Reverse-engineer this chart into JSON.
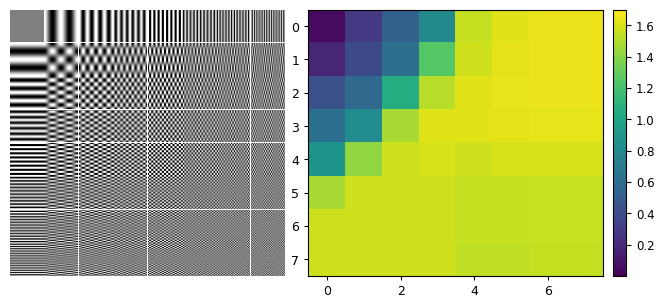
{
  "heatmap": [
    [
      0.05,
      0.28,
      0.52,
      0.8,
      1.55,
      1.62,
      1.65,
      1.65
    ],
    [
      0.18,
      0.38,
      0.62,
      1.25,
      1.58,
      1.63,
      1.65,
      1.65
    ],
    [
      0.42,
      0.58,
      1.05,
      1.52,
      1.62,
      1.64,
      1.65,
      1.65
    ],
    [
      0.62,
      0.82,
      1.48,
      1.62,
      1.62,
      1.63,
      1.64,
      1.64
    ],
    [
      0.88,
      1.42,
      1.58,
      1.6,
      1.58,
      1.6,
      1.6,
      1.6
    ],
    [
      1.48,
      1.58,
      1.58,
      1.58,
      1.55,
      1.55,
      1.56,
      1.56
    ],
    [
      1.58,
      1.58,
      1.58,
      1.58,
      1.55,
      1.55,
      1.56,
      1.56
    ],
    [
      1.58,
      1.58,
      1.58,
      1.58,
      1.54,
      1.54,
      1.55,
      1.55
    ]
  ],
  "colormap": "viridis",
  "vmin": 0.0,
  "vmax": 1.7,
  "colorbar_ticks": [
    0.2,
    0.4,
    0.6,
    0.8,
    1.0,
    1.2,
    1.4,
    1.6
  ],
  "xticks": [
    0,
    2,
    4,
    6
  ],
  "yticks": [
    0,
    1,
    2,
    3,
    4,
    5,
    6,
    7
  ],
  "n_dct": 8
}
